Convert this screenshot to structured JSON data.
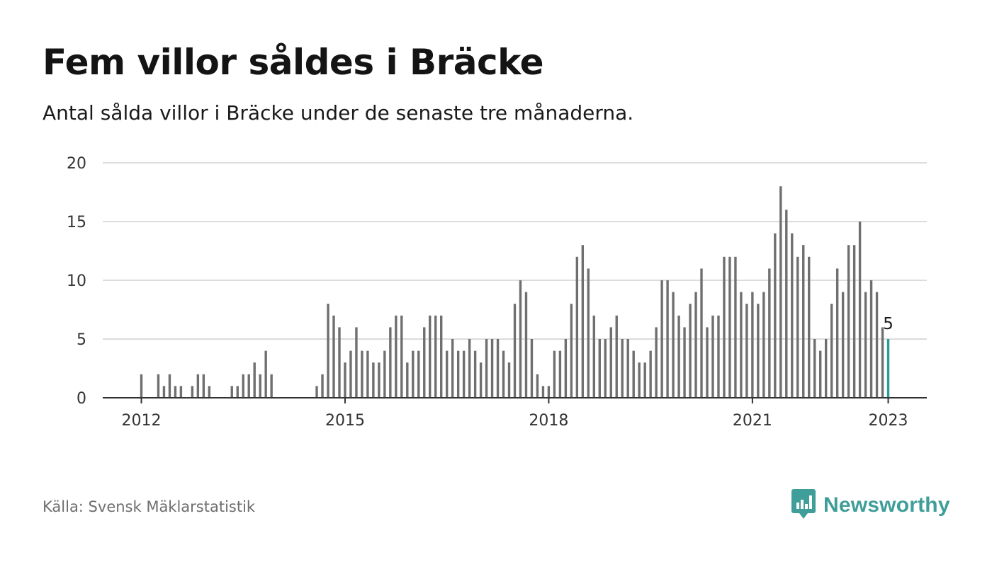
{
  "title": "Fem villor såldes i Bräcke",
  "subtitle": "Antal sålda villor i Bräcke under de senaste tre månaderna.",
  "source": "Källa: Svensk Mäklarstatistik",
  "brand": {
    "name": "Newsworthy",
    "icon": "newsworthy-logo-icon",
    "color": "#3f9e99"
  },
  "colors": {
    "bar": "#6f6f6f",
    "highlight": "#2a9d98",
    "grid": "#dcdcdc",
    "axis": "#333333"
  },
  "chart_data": {
    "type": "bar",
    "x_label": "",
    "y_label": "",
    "ylim": [
      0,
      20
    ],
    "y_ticks": [
      "0",
      "5",
      "10",
      "15",
      "20"
    ],
    "x_ticks": [
      {
        "label": "2012",
        "index": 0
      },
      {
        "label": "2015",
        "index": 36
      },
      {
        "label": "2018",
        "index": 72
      },
      {
        "label": "2021",
        "index": 108
      },
      {
        "label": "2023",
        "index": 132
      }
    ],
    "grid": true,
    "x": [
      "2012-01",
      "2012-02",
      "2012-03",
      "2012-04",
      "2012-05",
      "2012-06",
      "2012-07",
      "2012-08",
      "2012-09",
      "2012-10",
      "2012-11",
      "2012-12",
      "2013-01",
      "2013-02",
      "2013-03",
      "2013-04",
      "2013-05",
      "2013-06",
      "2013-07",
      "2013-08",
      "2013-09",
      "2013-10",
      "2013-11",
      "2013-12",
      "2014-01",
      "2014-02",
      "2014-03",
      "2014-04",
      "2014-05",
      "2014-06",
      "2014-07",
      "2014-08",
      "2014-09",
      "2014-10",
      "2014-11",
      "2014-12",
      "2015-01",
      "2015-02",
      "2015-03",
      "2015-04",
      "2015-05",
      "2015-06",
      "2015-07",
      "2015-08",
      "2015-09",
      "2015-10",
      "2015-11",
      "2015-12",
      "2016-01",
      "2016-02",
      "2016-03",
      "2016-04",
      "2016-05",
      "2016-06",
      "2016-07",
      "2016-08",
      "2016-09",
      "2016-10",
      "2016-11",
      "2016-12",
      "2017-01",
      "2017-02",
      "2017-03",
      "2017-04",
      "2017-05",
      "2017-06",
      "2017-07",
      "2017-08",
      "2017-09",
      "2017-10",
      "2017-11",
      "2017-12",
      "2018-01",
      "2018-02",
      "2018-03",
      "2018-04",
      "2018-05",
      "2018-06",
      "2018-07",
      "2018-08",
      "2018-09",
      "2018-10",
      "2018-11",
      "2018-12",
      "2019-01",
      "2019-02",
      "2019-03",
      "2019-04",
      "2019-05",
      "2019-06",
      "2019-07",
      "2019-08",
      "2019-09",
      "2019-10",
      "2019-11",
      "2019-12",
      "2020-01",
      "2020-02",
      "2020-03",
      "2020-04",
      "2020-05",
      "2020-06",
      "2020-07",
      "2020-08",
      "2020-09",
      "2020-10",
      "2020-11",
      "2020-12",
      "2021-01",
      "2021-02",
      "2021-03",
      "2021-04",
      "2021-05",
      "2021-06",
      "2021-07",
      "2021-08",
      "2021-09",
      "2021-10",
      "2021-11",
      "2021-12",
      "2022-01",
      "2022-02",
      "2022-03",
      "2022-04",
      "2022-05",
      "2022-06",
      "2022-07",
      "2022-08",
      "2022-09",
      "2022-10",
      "2022-11",
      "2022-12",
      "2023-01"
    ],
    "values": [
      2,
      0,
      0,
      2,
      1,
      2,
      1,
      1,
      0,
      1,
      2,
      2,
      1,
      0,
      0,
      0,
      1,
      1,
      2,
      2,
      3,
      2,
      4,
      2,
      0,
      0,
      0,
      0,
      0,
      0,
      0,
      1,
      2,
      8,
      7,
      6,
      3,
      4,
      6,
      4,
      4,
      3,
      3,
      4,
      6,
      7,
      7,
      3,
      4,
      4,
      6,
      7,
      7,
      7,
      4,
      5,
      4,
      4,
      5,
      4,
      3,
      5,
      5,
      5,
      4,
      3,
      8,
      10,
      9,
      5,
      2,
      1,
      1,
      4,
      4,
      5,
      8,
      12,
      13,
      11,
      7,
      5,
      5,
      6,
      7,
      5,
      5,
      4,
      3,
      3,
      4,
      6,
      10,
      10,
      9,
      7,
      6,
      8,
      9,
      11,
      6,
      7,
      7,
      12,
      12,
      12,
      9,
      8,
      9,
      8,
      9,
      11,
      14,
      18,
      16,
      14,
      12,
      13,
      12,
      5,
      4,
      5,
      8,
      11,
      9,
      13,
      13,
      15,
      9,
      10,
      9,
      6,
      5
    ],
    "highlight_index": 132,
    "highlight_label": "5"
  }
}
